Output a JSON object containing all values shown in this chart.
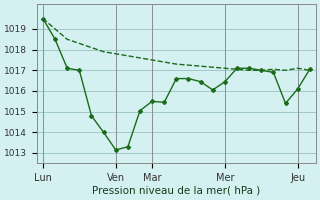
{
  "background_color": "#d4f0f0",
  "grid_color": "#a0c8c8",
  "line_color": "#1a6b1a",
  "xlabel": "Pression niveau de la mer( hPa )",
  "ylim": [
    1012.5,
    1020.2
  ],
  "yticks": [
    1013,
    1014,
    1015,
    1016,
    1017,
    1018,
    1019
  ],
  "xtick_labels": [
    "Lun",
    "Ven",
    "Mar",
    "Mer",
    "Jeu"
  ],
  "xtick_positions": [
    0,
    12,
    18,
    30,
    42
  ],
  "series1_x": [
    0,
    2,
    4,
    6,
    8,
    10,
    12,
    14,
    16,
    18,
    20,
    22,
    24,
    26,
    28,
    30,
    32,
    34,
    36,
    38,
    40,
    42,
    44
  ],
  "series1_y": [
    1019.5,
    1019.0,
    1018.5,
    1018.3,
    1018.1,
    1017.9,
    1017.8,
    1017.7,
    1017.6,
    1017.5,
    1017.4,
    1017.3,
    1017.25,
    1017.2,
    1017.15,
    1017.1,
    1017.05,
    1017.0,
    1017.0,
    1017.05,
    1017.0,
    1017.1,
    1017.0
  ],
  "series2_x": [
    0,
    2,
    4,
    6,
    8,
    10,
    12,
    14,
    16,
    18,
    20,
    22,
    24,
    26,
    28,
    30,
    32,
    34,
    36,
    38,
    40,
    42,
    44
  ],
  "series2_y": [
    1019.5,
    1018.5,
    1017.1,
    1017.0,
    1014.8,
    1014.0,
    1013.15,
    1013.3,
    1015.05,
    1015.5,
    1015.45,
    1016.6,
    1016.6,
    1016.45,
    1016.05,
    1016.45,
    1017.1,
    1017.1,
    1017.0,
    1016.9,
    1015.4,
    1016.1,
    1017.05
  ]
}
